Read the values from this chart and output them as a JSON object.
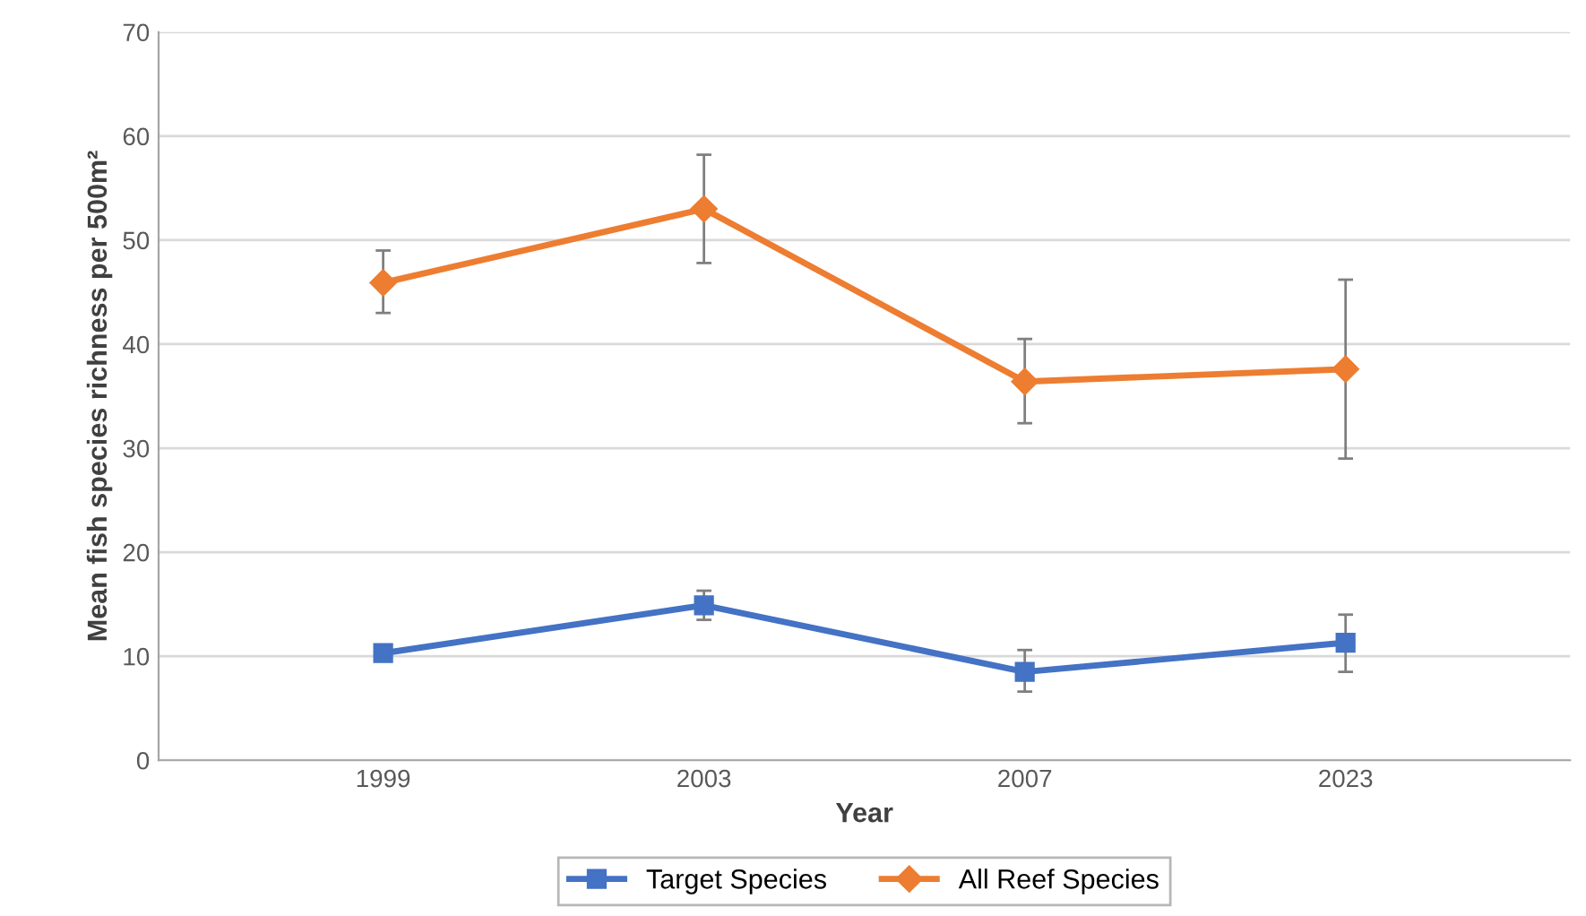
{
  "chart_data": {
    "type": "line",
    "xlabel": "Year",
    "ylabel": "Mean fish species richness per 500m²",
    "categories": [
      "1999",
      "2003",
      "2007",
      "2023"
    ],
    "series": [
      {
        "name": "Target Species",
        "color": "#4472c4",
        "marker": "square",
        "values": [
          10.3,
          14.9,
          8.5,
          11.3
        ],
        "errors": [
          null,
          [
            13.5,
            16.3
          ],
          [
            6.6,
            10.6
          ],
          [
            8.5,
            14.0
          ]
        ]
      },
      {
        "name": "All Reef Species",
        "color": "#ed7d31",
        "marker": "diamond",
        "values": [
          45.9,
          53.0,
          36.4,
          37.6
        ],
        "errors": [
          [
            43,
            49
          ],
          [
            47.8,
            58.2
          ],
          [
            32.4,
            40.5
          ],
          [
            29.0,
            46.2
          ]
        ]
      }
    ],
    "ylim": [
      0,
      70
    ],
    "yticks": [
      0,
      10,
      20,
      30,
      40,
      50,
      60,
      70
    ],
    "grid": "y",
    "legend": "bottom",
    "line_style": "solid"
  }
}
